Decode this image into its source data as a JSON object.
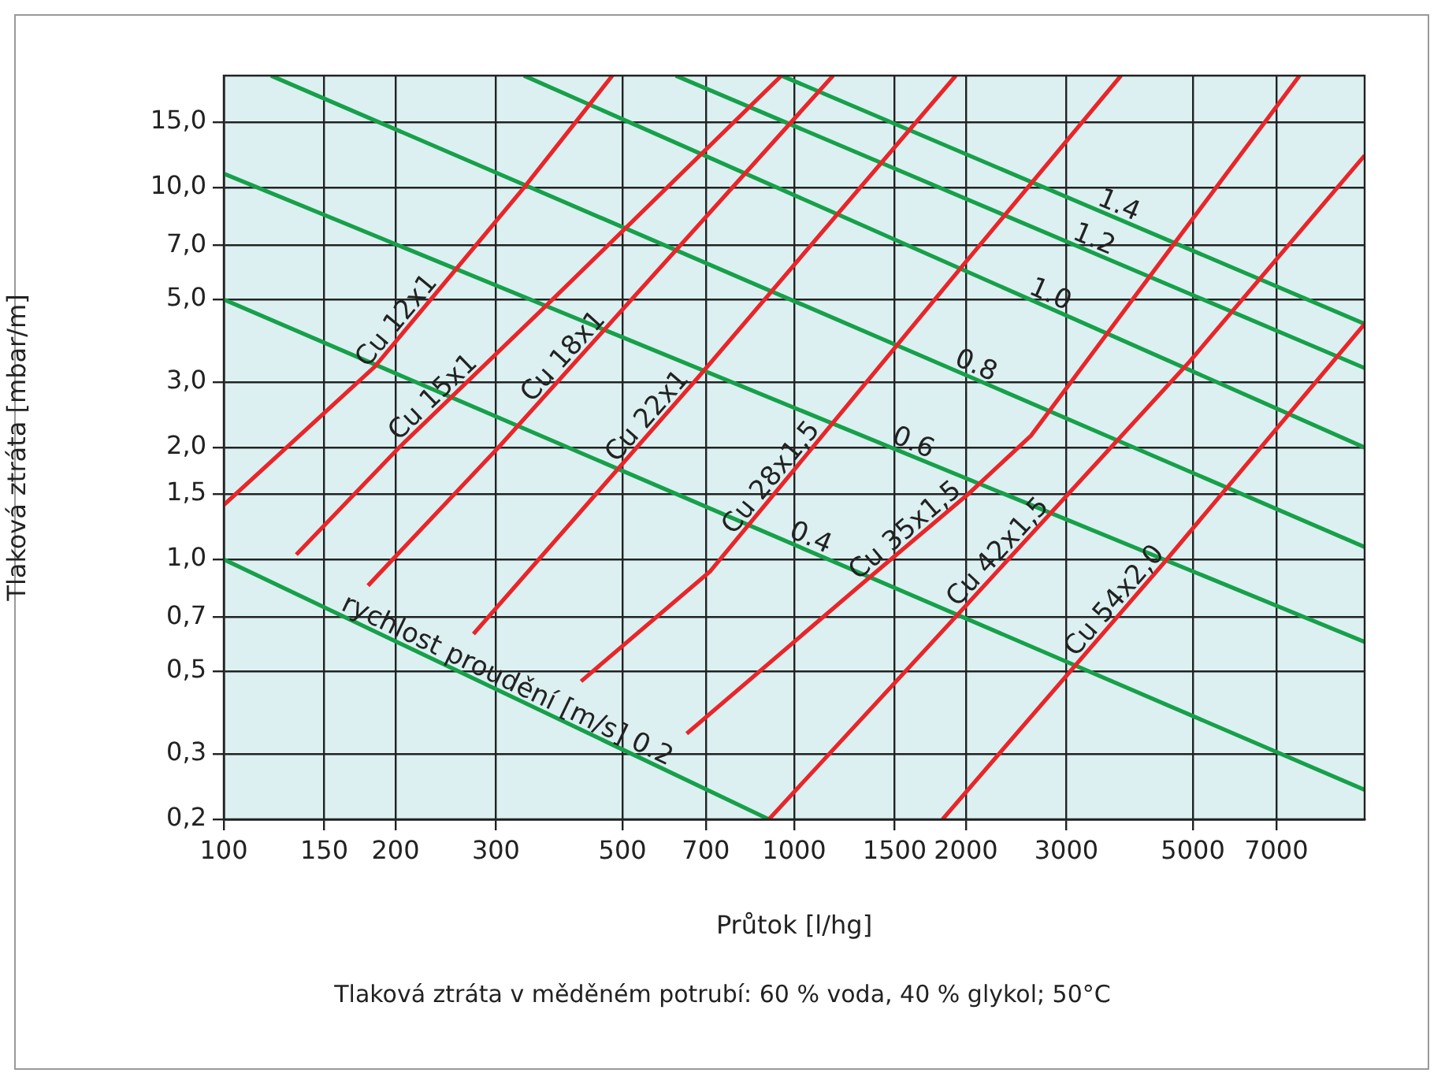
{
  "chart_data": {
    "type": "line",
    "xlabel": "Průtok [l/hg]",
    "ylabel": "Tlaková ztráta [mbar/m]",
    "annotations": [
      "Tlaková ztráta v měděném potrubí: 60 % voda, 40 % glykol; 50°C"
    ],
    "log": "xy",
    "grid": true,
    "legend": false,
    "marker": "none",
    "line_style": "solid",
    "xlim": [
      100,
      10000
    ],
    "ylim": [
      0.2,
      20
    ],
    "xticks": [
      100,
      150,
      200,
      300,
      500,
      700,
      1000,
      1500,
      2000,
      3000,
      5000,
      7000
    ],
    "yticks": [
      {
        "value": 15,
        "label": "15,0"
      },
      {
        "value": 10,
        "label": "10,0"
      },
      {
        "value": 7,
        "label": "7,0"
      },
      {
        "value": 5,
        "label": "5,0"
      },
      {
        "value": 3,
        "label": "3,0"
      },
      {
        "value": 2,
        "label": "2,0"
      },
      {
        "value": 1.5,
        "label": "1,5"
      },
      {
        "value": 1,
        "label": "1,0"
      },
      {
        "value": 0.7,
        "label": "0,7"
      },
      {
        "value": 0.5,
        "label": "0,5"
      },
      {
        "value": 0.3,
        "label": "0,3"
      },
      {
        "value": 0.2,
        "label": "0,2"
      }
    ],
    "series": [
      {
        "name": "Cu 12x1",
        "color": "#e8262a",
        "x": [
          100,
          184,
          336,
          480
        ],
        "values": [
          1.4,
          3.3,
          10,
          20
        ]
      },
      {
        "name": "Cu 15x1",
        "color": "#e8262a",
        "x": [
          134,
          203,
          377,
          950
        ],
        "values": [
          1.03,
          2,
          5,
          20
        ]
      },
      {
        "name": "Cu 18x1",
        "color": "#e8262a",
        "x": [
          179,
          303,
          1170
        ],
        "values": [
          0.85,
          2,
          20
        ]
      },
      {
        "name": "Cu 22x1",
        "color": "#e8262a",
        "x": [
          274,
          680,
          1920
        ],
        "values": [
          0.63,
          3.1,
          20
        ]
      },
      {
        "name": "Cu 28x1,5",
        "color": "#e8262a",
        "x": [
          423,
          713,
          1980,
          3740
        ],
        "values": [
          0.47,
          0.93,
          6.2,
          20
        ]
      },
      {
        "name": "Cu 35x1,5",
        "color": "#e8262a",
        "x": [
          648,
          1350,
          2020,
          2600,
          7690
        ],
        "values": [
          0.34,
          0.89,
          1.5,
          2.15,
          20
        ]
      },
      {
        "name": "Cu 42x1,5",
        "color": "#e8262a",
        "x": [
          903,
          1950,
          4930,
          10000
        ],
        "values": [
          0.2,
          0.72,
          3.4,
          12.2
        ]
      },
      {
        "name": "Cu 54x2,0",
        "color": "#e8262a",
        "x": [
          1820,
          4450,
          10000
        ],
        "values": [
          0.2,
          0.98,
          4.3
        ]
      },
      {
        "name": "rychlost proudění [m/s] 0.2",
        "color": "#17a04a",
        "x": [
          100,
          903
        ],
        "values": [
          1,
          0.2
        ]
      },
      {
        "name": "0.4",
        "color": "#17a04a",
        "x": [
          100,
          10000
        ],
        "values": [
          5,
          0.24
        ]
      },
      {
        "name": "0.6",
        "color": "#17a04a",
        "x": [
          100,
          10000
        ],
        "values": [
          10.9,
          0.6
        ]
      },
      {
        "name": "0.8",
        "color": "#17a04a",
        "x": [
          121,
          10000
        ],
        "values": [
          20,
          1.08
        ]
      },
      {
        "name": "1.0",
        "color": "#17a04a",
        "x": [
          336,
          10000
        ],
        "values": [
          20,
          2
        ]
      },
      {
        "name": "1.2",
        "color": "#17a04a",
        "x": [
          620,
          10000
        ],
        "values": [
          20,
          3.27
        ]
      },
      {
        "name": "1.4",
        "color": "#17a04a",
        "x": [
          950,
          10000
        ],
        "values": [
          20,
          4.3
        ]
      }
    ]
  }
}
